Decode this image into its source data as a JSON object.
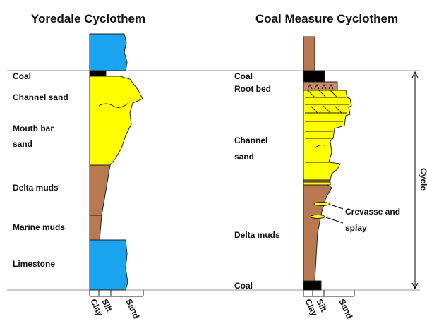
{
  "left": {
    "title": "Yoredale Cyclothem",
    "labels": [
      "Coal",
      "Channel sand",
      "Mouth bar",
      "sand",
      "Delta muds",
      "Marine muds",
      "Limestone"
    ],
    "axis": [
      "Clay",
      "Silt",
      "Sand"
    ]
  },
  "right": {
    "title": "Coal Measure Cyclothem",
    "labels": [
      "Coal",
      "Root bed",
      "Channel",
      "sand",
      "Delta muds",
      "Coal"
    ],
    "annotation": [
      "Crevasse and",
      "splay"
    ],
    "bracket": "Cycle",
    "axis": [
      "Clay",
      "Silt",
      "Sand"
    ]
  }
}
